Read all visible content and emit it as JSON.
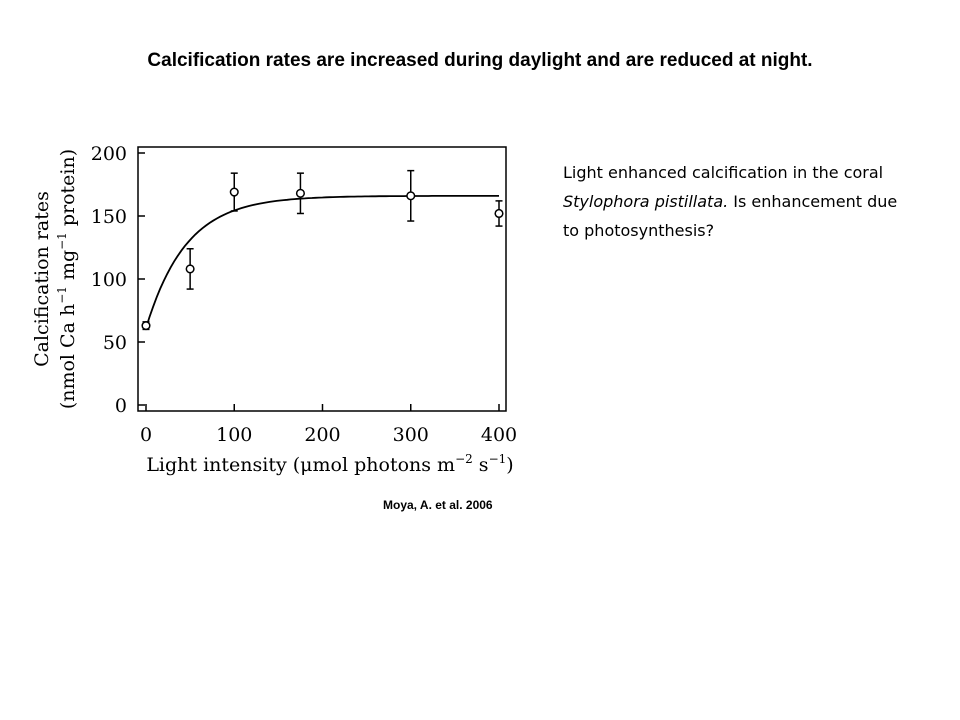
{
  "slide": {
    "title": "Calcification rates are increased during daylight and are reduced at night."
  },
  "caption": {
    "part1": "Light enhanced calcification in the coral ",
    "species": "Stylophora pistillata.",
    "part2": " Is enhancement due to photosynthesis?"
  },
  "credit": "Moya, A. et al. 2006",
  "chart_data": {
    "type": "scatter",
    "xlabel_parts": [
      "Light intensity (",
      "μ",
      "mol photons m",
      "−2",
      " s",
      "−1",
      ")"
    ],
    "ylabel_line1": "Calcification rates",
    "ylabel_line2_parts": [
      "(nmol Ca h",
      "−1",
      " mg",
      "−1",
      " protein)"
    ],
    "xlim": [
      0,
      400
    ],
    "ylim": [
      0,
      200
    ],
    "x_ticks": [
      0,
      100,
      200,
      300,
      400
    ],
    "y_ticks": [
      0,
      50,
      100,
      150,
      200
    ],
    "points": [
      {
        "x": 0,
        "y": 63,
        "err": 3
      },
      {
        "x": 50,
        "y": 108,
        "err": 16
      },
      {
        "x": 100,
        "y": 169,
        "err": 15
      },
      {
        "x": 175,
        "y": 168,
        "err": 16
      },
      {
        "x": 300,
        "y": 166,
        "err": 20
      },
      {
        "x": 400,
        "y": 152,
        "err": 10
      }
    ],
    "fit": {
      "type": "exponential-saturation",
      "y0": 61,
      "ymax": 166,
      "k": 0.022
    },
    "grid": false
  }
}
